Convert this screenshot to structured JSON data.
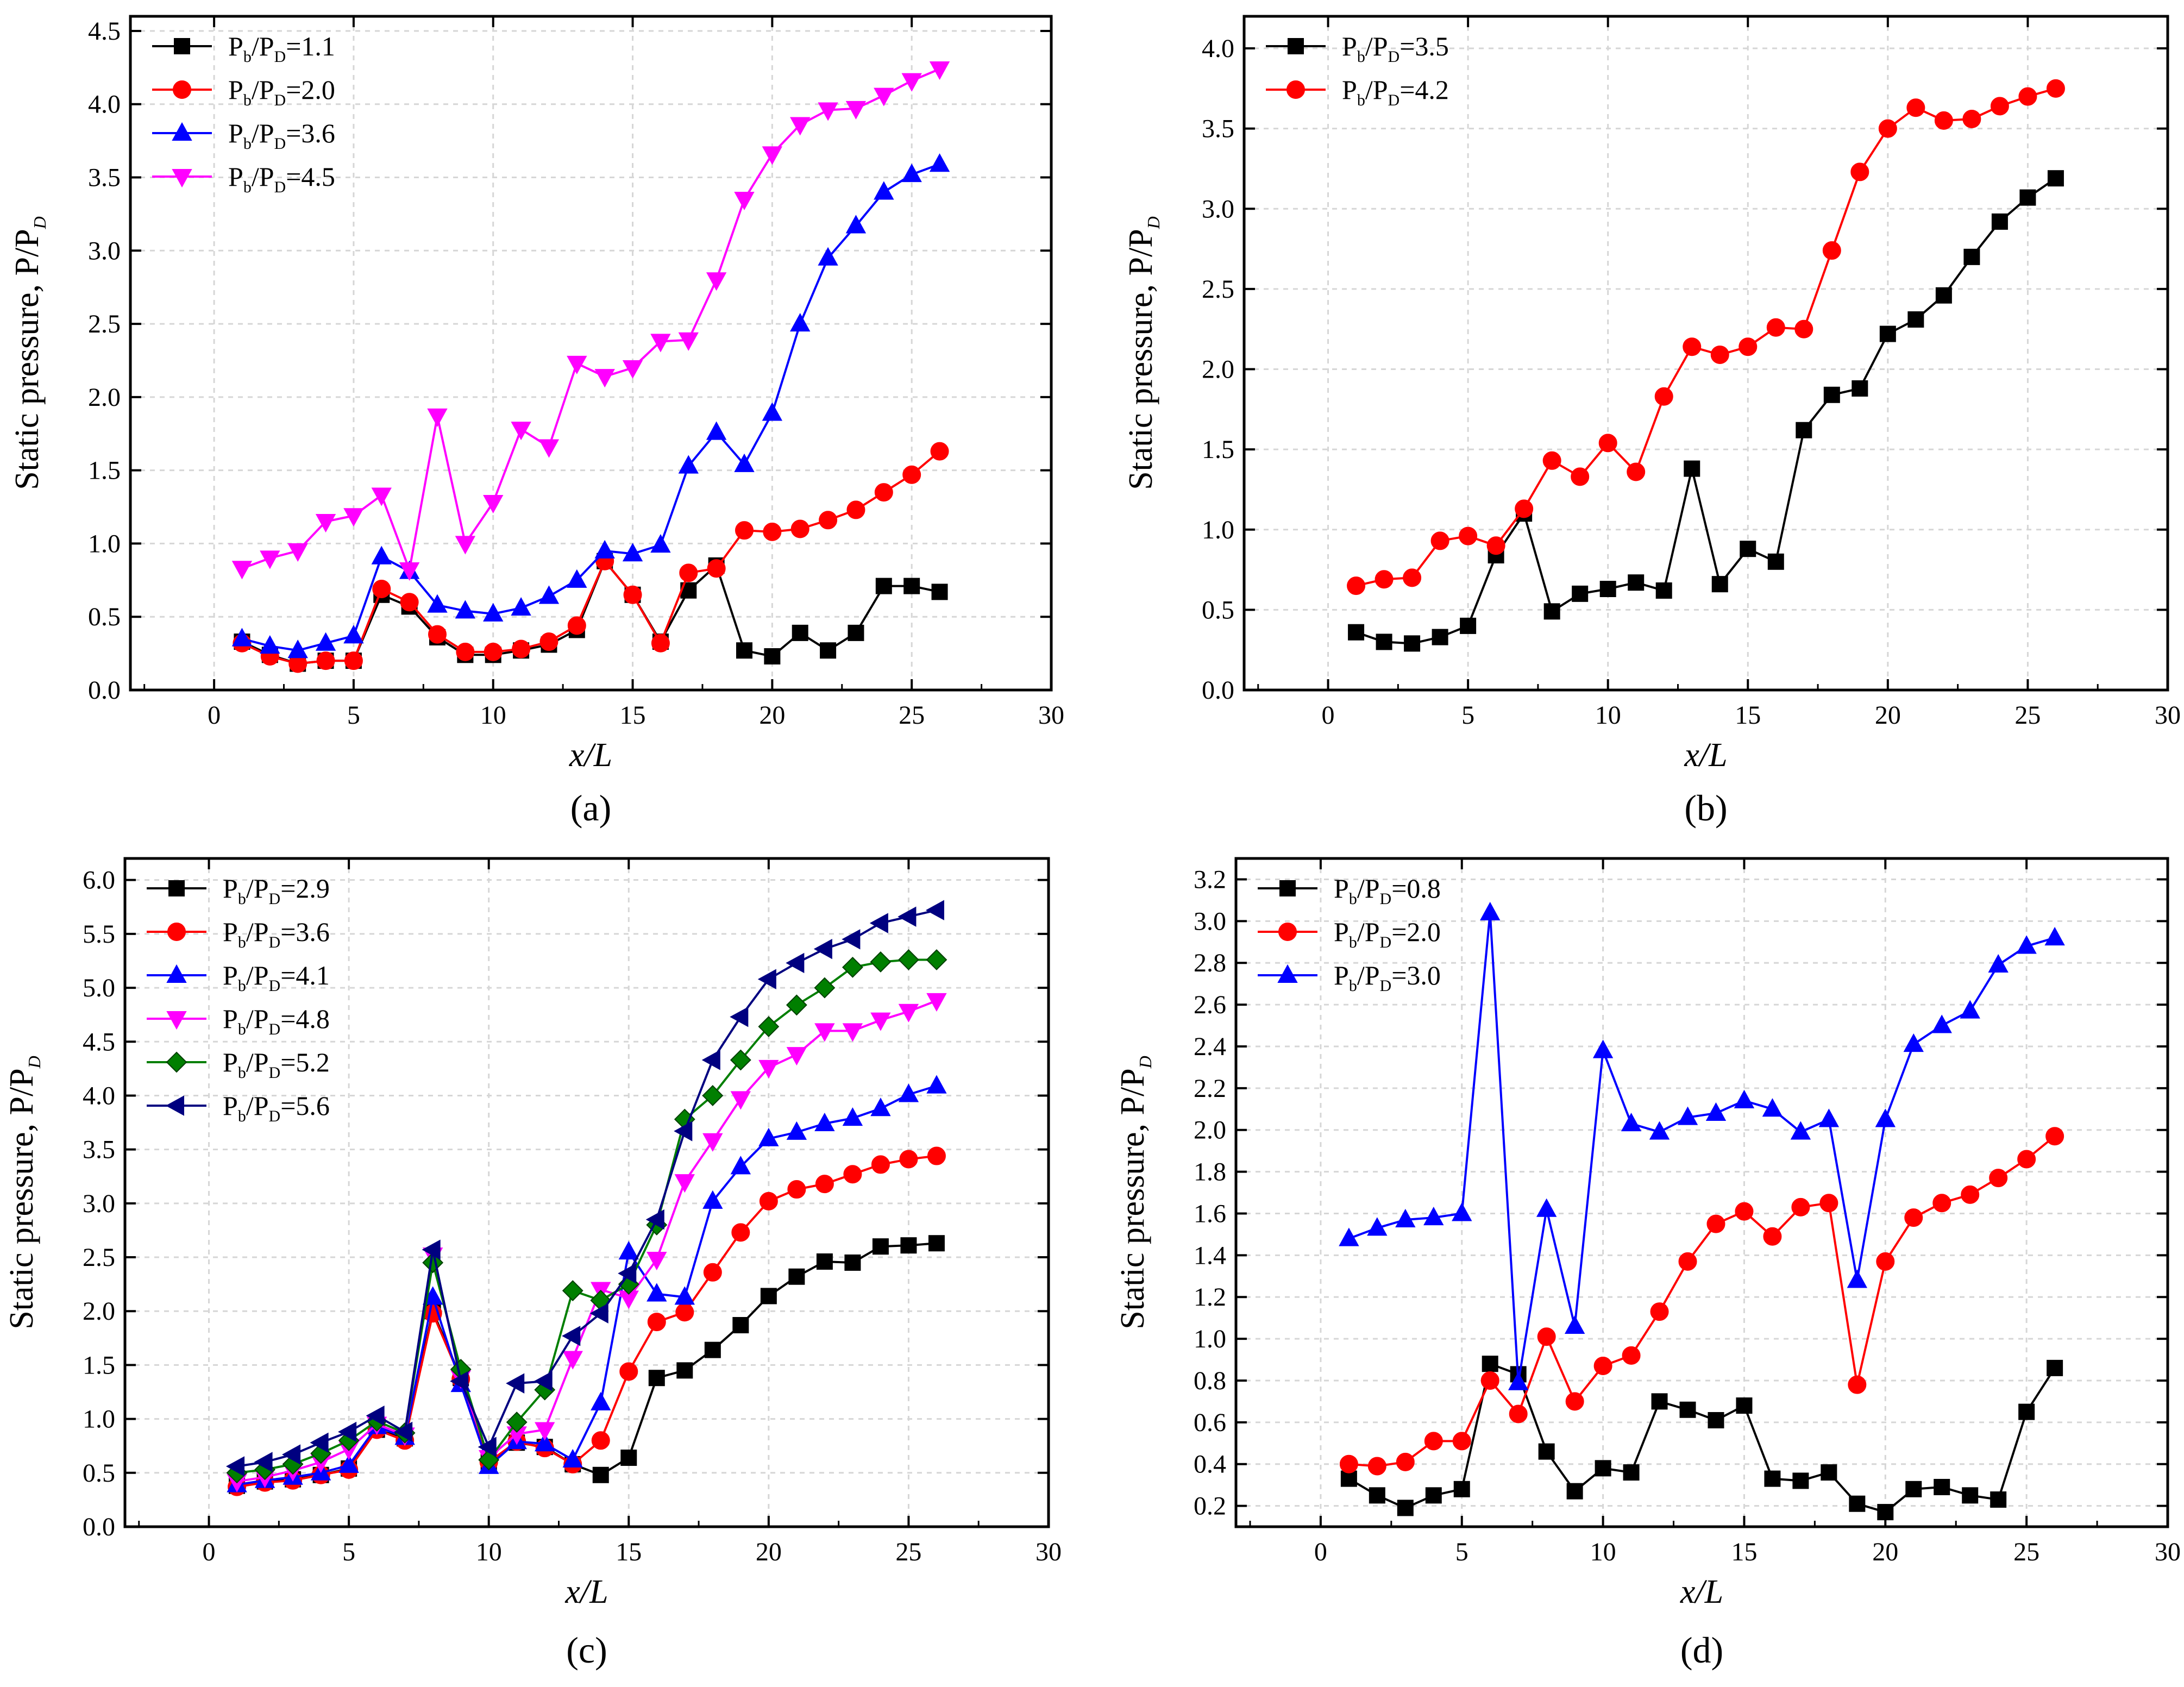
{
  "figure": {
    "colors": {
      "black": "#000000",
      "red": "#ff0000",
      "blue": "#0000ff",
      "magenta": "#ff00ff",
      "green": "#007f00",
      "navy": "#000080",
      "marker_edge_green": "#004000"
    }
  },
  "chart_data": [
    {
      "id": "a",
      "panel_label": "(a)",
      "type": "line",
      "title": "",
      "xlabel": "x/L",
      "ylabel": "Static pressure, P/P",
      "ylabel_sub": "D",
      "xlim": [
        -3,
        30
      ],
      "ylim": [
        0,
        4.6
      ],
      "xticks": [
        0,
        5,
        10,
        15,
        20,
        25,
        30
      ],
      "xtick_labels": [
        "0",
        "5",
        "10",
        "15",
        "20",
        "25",
        "30"
      ],
      "yticks": [
        0,
        0.5,
        1.0,
        1.5,
        2.0,
        2.5,
        3.0,
        3.5,
        4.0,
        4.5
      ],
      "ytick_labels": [
        "0.0",
        "0.5",
        "1.0",
        "1.5",
        "2.0",
        "2.5",
        "3.0",
        "3.5",
        "4.0",
        "4.5"
      ],
      "grid": true,
      "legend_position": "top-left",
      "x": [
        1,
        2,
        3,
        4,
        5,
        6,
        7,
        8,
        9,
        10,
        11,
        12,
        13,
        14,
        15,
        16,
        17,
        18,
        19,
        20,
        21,
        22,
        23,
        24,
        25,
        26
      ],
      "series": [
        {
          "legend": {
            "pre": "P",
            "sub1": "b",
            "mid": "/P",
            "sub2": "D",
            "post": "=1.1"
          },
          "color": "#000000",
          "marker": "square",
          "values": [
            0.33,
            0.24,
            0.18,
            0.2,
            0.2,
            0.65,
            0.57,
            0.36,
            0.24,
            0.24,
            0.27,
            0.31,
            0.41,
            0.88,
            0.65,
            0.33,
            0.68,
            0.85,
            0.27,
            0.23,
            0.39,
            0.27,
            0.39,
            0.71,
            0.71,
            0.67
          ]
        },
        {
          "legend": {
            "pre": "P",
            "sub1": "b",
            "mid": "/P",
            "sub2": "D",
            "post": "=2.0"
          },
          "color": "#ff0000",
          "marker": "circle",
          "values": [
            0.32,
            0.23,
            0.18,
            0.2,
            0.2,
            0.69,
            0.6,
            0.38,
            0.26,
            0.26,
            0.28,
            0.33,
            0.44,
            0.88,
            0.65,
            0.32,
            0.8,
            0.83,
            1.09,
            1.08,
            1.1,
            1.16,
            1.23,
            1.35,
            1.47,
            1.63
          ]
        },
        {
          "legend": {
            "pre": "P",
            "sub1": "b",
            "mid": "/P",
            "sub2": "D",
            "post": "=3.6"
          },
          "color": "#0000ff",
          "marker": "triangle-up",
          "values": [
            0.35,
            0.3,
            0.27,
            0.32,
            0.37,
            0.91,
            0.81,
            0.58,
            0.54,
            0.52,
            0.56,
            0.64,
            0.75,
            0.95,
            0.93,
            0.99,
            1.53,
            1.76,
            1.54,
            1.89,
            2.5,
            2.95,
            3.17,
            3.4,
            3.52,
            3.59
          ]
        },
        {
          "legend": {
            "pre": "P",
            "sub1": "b",
            "mid": "/P",
            "sub2": "D",
            "post": "=4.5"
          },
          "color": "#ff00ff",
          "marker": "triangle-down",
          "values": [
            0.83,
            0.9,
            0.95,
            1.15,
            1.19,
            1.33,
            0.82,
            1.87,
            1.0,
            1.28,
            1.78,
            1.66,
            2.23,
            2.14,
            2.2,
            2.38,
            2.39,
            2.8,
            3.35,
            3.66,
            3.86,
            3.96,
            3.97,
            4.06,
            4.16,
            4.24
          ]
        }
      ]
    },
    {
      "id": "b",
      "panel_label": "(b)",
      "type": "line",
      "title": "",
      "xlabel": "x/L",
      "ylabel": "Static pressure, P/P",
      "ylabel_sub": "D",
      "xlim": [
        -3,
        30
      ],
      "ylim": [
        0,
        4.2
      ],
      "xticks": [
        0,
        5,
        10,
        15,
        20,
        25,
        30
      ],
      "xtick_labels": [
        "0",
        "5",
        "10",
        "15",
        "20",
        "25",
        "30"
      ],
      "yticks": [
        0,
        0.5,
        1.0,
        1.5,
        2.0,
        2.5,
        3.0,
        3.5,
        4.0
      ],
      "ytick_labels": [
        "0.0",
        "0.5",
        "1.0",
        "1.5",
        "2.0",
        "2.5",
        "3.0",
        "3.5",
        "4.0"
      ],
      "grid": true,
      "legend_position": "top-left",
      "x": [
        1,
        2,
        3,
        4,
        5,
        6,
        7,
        8,
        9,
        10,
        11,
        12,
        13,
        14,
        15,
        16,
        17,
        18,
        19,
        20,
        21,
        22,
        23,
        24,
        25,
        26
      ],
      "series": [
        {
          "legend": {
            "pre": "P",
            "sub1": "b",
            "mid": "/P",
            "sub2": "D",
            "post": "=3.5"
          },
          "color": "#000000",
          "marker": "square",
          "values": [
            0.36,
            0.3,
            0.29,
            0.33,
            0.4,
            0.84,
            1.1,
            0.49,
            0.6,
            0.63,
            0.67,
            0.62,
            1.38,
            0.66,
            0.88,
            0.8,
            1.62,
            1.84,
            1.88,
            2.22,
            2.31,
            2.46,
            2.7,
            2.92,
            3.07,
            3.19
          ]
        },
        {
          "legend": {
            "pre": "P",
            "sub1": "b",
            "mid": "/P",
            "sub2": "D",
            "post": "=4.2"
          },
          "color": "#ff0000",
          "marker": "circle",
          "values": [
            0.65,
            0.69,
            0.7,
            0.93,
            0.96,
            0.9,
            1.13,
            1.43,
            1.33,
            1.54,
            1.36,
            1.83,
            2.14,
            2.09,
            2.14,
            2.26,
            2.25,
            2.74,
            3.23,
            3.5,
            3.63,
            3.55,
            3.56,
            3.64,
            3.7,
            3.75
          ]
        }
      ]
    },
    {
      "id": "c",
      "panel_label": "(c)",
      "type": "line",
      "title": "",
      "xlabel": "x/L",
      "ylabel": "Static pressure, P/P",
      "ylabel_sub": "D",
      "xlim": [
        -3,
        30
      ],
      "ylim": [
        0,
        6.2
      ],
      "xticks": [
        0,
        5,
        10,
        15,
        20,
        25,
        30
      ],
      "xtick_labels": [
        "0",
        "5",
        "10",
        "15",
        "20",
        "25",
        "30"
      ],
      "yticks": [
        0,
        0.5,
        1.0,
        1.5,
        2.0,
        2.5,
        3.0,
        3.5,
        4.0,
        4.5,
        5.0,
        5.5,
        6.0
      ],
      "ytick_labels": [
        "0.0",
        "0.5",
        "1.0",
        "1.5",
        "2.0",
        "2.5",
        "3.0",
        "3.5",
        "4.0",
        "4.5",
        "5.0",
        "5.5",
        "6.0"
      ],
      "grid": true,
      "legend_position": "top-left",
      "x": [
        1,
        2,
        3,
        4,
        5,
        6,
        7,
        8,
        9,
        10,
        11,
        12,
        13,
        14,
        15,
        16,
        17,
        18,
        19,
        20,
        21,
        22,
        23,
        24,
        25,
        26
      ],
      "series": [
        {
          "legend": {
            "pre": "P",
            "sub1": "b",
            "mid": "/P",
            "sub2": "D",
            "post": "=2.9"
          },
          "color": "#000000",
          "marker": "square",
          "values": [
            0.38,
            0.42,
            0.44,
            0.48,
            0.54,
            0.9,
            0.82,
            2.0,
            1.38,
            0.6,
            0.78,
            0.74,
            0.58,
            0.48,
            0.64,
            1.38,
            1.45,
            1.64,
            1.87,
            2.14,
            2.32,
            2.46,
            2.45,
            2.6,
            2.61,
            2.63
          ]
        },
        {
          "legend": {
            "pre": "P",
            "sub1": "b",
            "mid": "/P",
            "sub2": "D",
            "post": "=3.6"
          },
          "color": "#ff0000",
          "marker": "circle",
          "values": [
            0.37,
            0.41,
            0.43,
            0.48,
            0.53,
            0.9,
            0.8,
            1.98,
            1.37,
            0.6,
            0.79,
            0.73,
            0.58,
            0.8,
            1.44,
            1.9,
            1.99,
            2.36,
            2.73,
            3.02,
            3.13,
            3.18,
            3.27,
            3.36,
            3.41,
            3.44
          ]
        },
        {
          "legend": {
            "pre": "P",
            "sub1": "b",
            "mid": "/P",
            "sub2": "D",
            "post": "=4.1"
          },
          "color": "#0000ff",
          "marker": "triangle-up",
          "values": [
            0.39,
            0.43,
            0.46,
            0.5,
            0.57,
            0.93,
            0.83,
            2.13,
            1.32,
            0.56,
            0.79,
            0.77,
            0.62,
            1.15,
            2.55,
            2.16,
            2.13,
            3.02,
            3.34,
            3.6,
            3.66,
            3.74,
            3.79,
            3.88,
            4.01,
            4.09
          ]
        },
        {
          "legend": {
            "pre": "P",
            "sub1": "b",
            "mid": "/P",
            "sub2": "D",
            "post": "=4.8"
          },
          "color": "#ff00ff",
          "marker": "triangle-down",
          "values": [
            0.42,
            0.46,
            0.52,
            0.6,
            0.72,
            0.95,
            0.85,
            2.52,
            1.38,
            0.64,
            0.86,
            0.9,
            1.56,
            2.2,
            2.12,
            2.48,
            3.2,
            3.58,
            3.97,
            4.26,
            4.38,
            4.6,
            4.6,
            4.7,
            4.78,
            4.88
          ]
        },
        {
          "legend": {
            "pre": "P",
            "sub1": "b",
            "mid": "/P",
            "sub2": "D",
            "post": "=5.2"
          },
          "color": "#007f00",
          "marker": "diamond",
          "values": [
            0.5,
            0.53,
            0.58,
            0.68,
            0.8,
            0.98,
            0.87,
            2.45,
            1.46,
            0.62,
            0.97,
            1.27,
            2.19,
            2.1,
            2.25,
            2.8,
            3.78,
            4.0,
            4.33,
            4.64,
            4.84,
            5.0,
            5.19,
            5.24,
            5.26,
            5.26
          ]
        },
        {
          "legend": {
            "pre": "P",
            "sub1": "b",
            "mid": "/P",
            "sub2": "D",
            "post": "=5.6"
          },
          "color": "#000080",
          "marker": "triangle-left",
          "values": [
            0.56,
            0.6,
            0.67,
            0.78,
            0.88,
            1.03,
            0.88,
            2.57,
            1.35,
            0.74,
            1.33,
            1.35,
            1.77,
            1.98,
            2.35,
            2.85,
            3.67,
            4.33,
            4.73,
            5.08,
            5.23,
            5.36,
            5.45,
            5.6,
            5.66,
            5.72
          ]
        }
      ]
    },
    {
      "id": "d",
      "panel_label": "(d)",
      "type": "line",
      "title": "",
      "xlabel": "x/L",
      "ylabel": "Static pressure, P/P",
      "ylabel_sub": "D",
      "xlim": [
        -3,
        30
      ],
      "ylim": [
        0.1,
        3.3
      ],
      "xticks": [
        0,
        5,
        10,
        15,
        20,
        25,
        30
      ],
      "xtick_labels": [
        "0",
        "5",
        "10",
        "15",
        "20",
        "25",
        "30"
      ],
      "yticks": [
        0.2,
        0.4,
        0.6,
        0.8,
        1.0,
        1.2,
        1.4,
        1.6,
        1.8,
        2.0,
        2.2,
        2.4,
        2.6,
        2.8,
        3.0,
        3.2
      ],
      "ytick_labels": [
        "0.2",
        "0.4",
        "0.6",
        "0.8",
        "1.0",
        "1.2",
        "1.4",
        "1.6",
        "1.8",
        "2.0",
        "2.2",
        "2.4",
        "2.6",
        "2.8",
        "3.0",
        "3.2"
      ],
      "grid": true,
      "legend_position": "top-left",
      "x": [
        1,
        2,
        3,
        4,
        5,
        6,
        7,
        8,
        9,
        10,
        11,
        12,
        13,
        14,
        15,
        16,
        17,
        18,
        19,
        20,
        21,
        22,
        23,
        24,
        25,
        26
      ],
      "series": [
        {
          "legend": {
            "pre": "P",
            "sub1": "b",
            "mid": "/P",
            "sub2": "D",
            "post": "=0.8"
          },
          "color": "#000000",
          "marker": "square",
          "values": [
            0.33,
            0.25,
            0.19,
            0.25,
            0.28,
            0.88,
            0.83,
            0.46,
            0.27,
            0.38,
            0.36,
            0.7,
            0.66,
            0.61,
            0.68,
            0.33,
            0.32,
            0.36,
            0.21,
            0.17,
            0.28,
            0.29,
            0.25,
            0.23,
            0.65,
            0.86
          ]
        },
        {
          "legend": {
            "pre": "P",
            "sub1": "b",
            "mid": "/P",
            "sub2": "D",
            "post": "=2.0"
          },
          "color": "#ff0000",
          "marker": "circle",
          "values": [
            0.4,
            0.39,
            0.41,
            0.51,
            0.51,
            0.8,
            0.64,
            1.01,
            0.7,
            0.87,
            0.92,
            1.13,
            1.37,
            1.55,
            1.61,
            1.49,
            1.63,
            1.65,
            0.78,
            1.37,
            1.58,
            1.65,
            1.69,
            1.77,
            1.86,
            1.97
          ]
        },
        {
          "legend": {
            "pre": "P",
            "sub1": "b",
            "mid": "/P",
            "sub2": "D",
            "post": "=3.0"
          },
          "color": "#0000ff",
          "marker": "triangle-up",
          "values": [
            1.48,
            1.53,
            1.57,
            1.58,
            1.6,
            3.04,
            0.79,
            1.62,
            1.06,
            2.38,
            2.03,
            1.99,
            2.06,
            2.08,
            2.14,
            2.1,
            1.99,
            2.05,
            1.28,
            2.05,
            2.41,
            2.5,
            2.57,
            2.79,
            2.88,
            2.92
          ]
        }
      ]
    }
  ]
}
